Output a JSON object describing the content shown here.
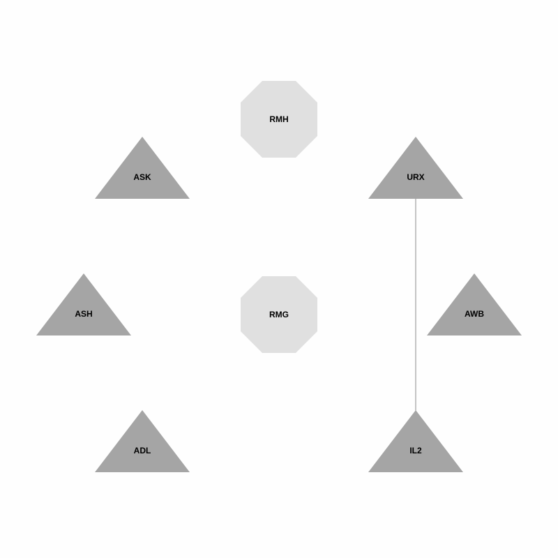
{
  "diagram": {
    "colors": {
      "background": "#fefefe",
      "octagon_fill": "#e0e0e0",
      "triangle_fill": "#a5a5a5",
      "edge_stroke": "#8a8a8a",
      "label": "#000000"
    },
    "nodes": [
      {
        "id": "RMH",
        "label": "RMH",
        "shape": "octagon"
      },
      {
        "id": "ASK",
        "label": "ASK",
        "shape": "triangle"
      },
      {
        "id": "URX",
        "label": "URX",
        "shape": "triangle"
      },
      {
        "id": "ASH",
        "label": "ASH",
        "shape": "triangle"
      },
      {
        "id": "RMG",
        "label": "RMG",
        "shape": "octagon"
      },
      {
        "id": "AWB",
        "label": "AWB",
        "shape": "triangle"
      },
      {
        "id": "ADL",
        "label": "ADL",
        "shape": "triangle"
      },
      {
        "id": "IL2",
        "label": "IL2",
        "shape": "triangle"
      }
    ],
    "edges": [
      {
        "source": "URX",
        "target": "IL2"
      }
    ]
  }
}
